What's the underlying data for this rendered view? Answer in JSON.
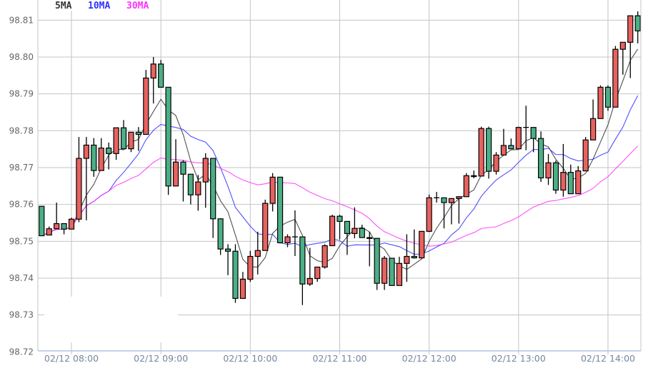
{
  "chart_data": {
    "type": "candlestick",
    "title": "",
    "xlabel": "",
    "ylabel": "",
    "interval": "5 min",
    "ylim": [
      98.72,
      98.81
    ],
    "yticks": [
      "98.72",
      "98.73",
      "98.74",
      "98.75",
      "98.76",
      "98.77",
      "98.78",
      "98.79",
      "98.80",
      "98.81"
    ],
    "xticks": [
      {
        "index": 4,
        "label": "02/12 08:00"
      },
      {
        "index": 16,
        "label": "02/12 09:00"
      },
      {
        "index": 28,
        "label": "02/12 10:00"
      },
      {
        "index": 40,
        "label": "02/12 11:00"
      },
      {
        "index": 52,
        "label": "02/12 12:00"
      },
      {
        "index": 64,
        "label": "02/12 13:00"
      },
      {
        "index": 76,
        "label": "02/12 14:00"
      }
    ],
    "grid": true,
    "legend": {
      "position": "top-left",
      "items": [
        {
          "name": "5MA",
          "color": "#333333",
          "period": 5
        },
        {
          "name": "10MA",
          "color": "#3030ff",
          "period": 10
        },
        {
          "name": "30MA",
          "color": "#ff30ff",
          "period": 30
        }
      ]
    },
    "colors": {
      "up": "#e8625f",
      "down": "#4caf86",
      "outline": "#000000"
    },
    "ohlc": [
      [
        98.7595,
        98.7595,
        98.7515,
        98.7515
      ],
      [
        98.7517,
        98.754,
        98.7517,
        98.7534
      ],
      [
        98.7534,
        98.7605,
        98.7534,
        98.7548
      ],
      [
        98.7548,
        98.7548,
        98.7519,
        98.7533
      ],
      [
        98.7533,
        98.7564,
        98.7532,
        98.756
      ],
      [
        98.756,
        98.7783,
        98.7552,
        98.7725
      ],
      [
        98.7725,
        98.7783,
        98.7557,
        98.7761
      ],
      [
        98.7761,
        98.778,
        98.7675,
        98.7692
      ],
      [
        98.7692,
        98.778,
        98.7692,
        98.7753
      ],
      [
        98.7753,
        98.7768,
        98.7695,
        98.7738
      ],
      [
        98.7738,
        98.7808,
        98.7721,
        98.7808
      ],
      [
        98.7808,
        98.7829,
        98.7751,
        98.7751
      ],
      [
        98.7751,
        98.7796,
        98.7742,
        98.7796
      ],
      [
        98.7796,
        98.781,
        98.7745,
        98.779
      ],
      [
        98.779,
        98.7965,
        98.779,
        98.7943
      ],
      [
        98.7943,
        98.8,
        98.7874,
        98.7981
      ],
      [
        98.7981,
        98.7992,
        98.7918,
        98.7918
      ],
      [
        98.7918,
        98.7918,
        98.7626,
        98.765
      ],
      [
        98.765,
        98.7777,
        98.7649,
        98.7715
      ],
      [
        98.7715,
        98.772,
        98.7608,
        98.7682
      ],
      [
        98.7682,
        98.7682,
        98.76,
        98.7626
      ],
      [
        98.7626,
        98.768,
        98.7583,
        98.7661
      ],
      [
        98.7661,
        98.7739,
        98.7591,
        98.7725
      ],
      [
        98.7725,
        98.7725,
        98.7509,
        98.7561
      ],
      [
        98.7561,
        98.7562,
        98.7463,
        98.7479
      ],
      [
        98.7479,
        98.7492,
        98.7408,
        98.7473
      ],
      [
        98.7473,
        98.7492,
        98.7333,
        98.7345
      ],
      [
        98.7345,
        98.7417,
        98.7345,
        98.7397
      ],
      [
        98.7397,
        98.7474,
        98.739,
        98.7459
      ],
      [
        98.7459,
        98.7526,
        98.741,
        98.7475
      ],
      [
        98.7475,
        98.7613,
        98.7475,
        98.7603
      ],
      [
        98.7603,
        98.7685,
        98.7581,
        98.7674
      ],
      [
        98.7674,
        98.7674,
        98.7494,
        98.7496
      ],
      [
        98.7496,
        98.7519,
        98.7484,
        98.7512
      ],
      [
        98.7512,
        98.7584,
        98.746,
        98.7512
      ],
      [
        98.7512,
        98.7512,
        98.7327,
        98.7384
      ],
      [
        98.7384,
        98.7482,
        98.7379,
        98.7399
      ],
      [
        98.7399,
        98.743,
        98.739,
        98.743
      ],
      [
        98.743,
        98.7492,
        98.7426,
        98.7488
      ],
      [
        98.7488,
        98.7572,
        98.7488,
        98.7568
      ],
      [
        98.7568,
        98.7572,
        98.7505,
        98.7554
      ],
      [
        98.7554,
        98.7554,
        98.7463,
        98.7521
      ],
      [
        98.7521,
        98.7592,
        98.7508,
        98.7535
      ],
      [
        98.7535,
        98.7545,
        98.751,
        98.751
      ],
      [
        98.751,
        98.7526,
        98.7432,
        98.7508
      ],
      [
        98.7508,
        98.7508,
        98.7368,
        98.7386
      ],
      [
        98.7386,
        98.746,
        98.7368,
        98.7454
      ],
      [
        98.7454,
        98.7454,
        98.738,
        98.738
      ],
      [
        98.738,
        98.7458,
        98.738,
        98.744
      ],
      [
        98.744,
        98.7519,
        98.739,
        98.7459
      ],
      [
        98.7459,
        98.7532,
        98.7453,
        98.7455
      ],
      [
        98.7455,
        98.7527,
        98.7452,
        98.7527
      ],
      [
        98.7527,
        98.7627,
        98.7525,
        98.7618
      ],
      [
        98.7618,
        98.7634,
        98.7605,
        98.7618
      ],
      [
        98.7618,
        98.7618,
        98.7535,
        98.7605
      ],
      [
        98.7605,
        98.7617,
        98.7546,
        98.7616
      ],
      [
        98.7616,
        98.7622,
        98.7548,
        98.7621
      ],
      [
        98.7621,
        98.7685,
        98.7621,
        98.7678
      ],
      [
        98.7678,
        98.7692,
        98.7671,
        98.7677
      ],
      [
        98.7677,
        98.7811,
        98.7677,
        98.7806
      ],
      [
        98.7806,
        98.7811,
        98.767,
        98.769
      ],
      [
        98.769,
        98.7742,
        98.7681,
        98.7734
      ],
      [
        98.7734,
        98.7805,
        98.7734,
        98.776
      ],
      [
        98.776,
        98.7779,
        98.7751,
        98.7751
      ],
      [
        98.7751,
        98.7811,
        98.7751,
        98.7809
      ],
      [
        98.7809,
        98.7868,
        98.7747,
        98.7809
      ],
      [
        98.7809,
        98.7809,
        98.7742,
        98.7779
      ],
      [
        98.7779,
        98.7798,
        98.7661,
        98.7672
      ],
      [
        98.7672,
        98.7737,
        98.7653,
        98.7713
      ],
      [
        98.7713,
        98.7719,
        98.7629,
        98.7639
      ],
      [
        98.7639,
        98.7764,
        98.7621,
        98.7687
      ],
      [
        98.7687,
        98.7708,
        98.7629,
        98.7629
      ],
      [
        98.7629,
        98.7704,
        98.7629,
        98.7691
      ],
      [
        98.7691,
        98.7783,
        98.7691,
        98.7775
      ],
      [
        98.7775,
        98.7885,
        98.7775,
        98.7833
      ],
      [
        98.7833,
        98.7923,
        98.7833,
        98.7918
      ],
      [
        98.7918,
        98.7923,
        98.7854,
        98.7864
      ],
      [
        98.7864,
        98.803,
        98.7864,
        98.8021
      ],
      [
        98.8021,
        98.804,
        98.7952,
        98.804
      ],
      [
        98.804,
        98.8112,
        98.7943,
        98.8112
      ],
      [
        98.8112,
        98.8124,
        98.8037,
        98.8071
      ]
    ]
  }
}
